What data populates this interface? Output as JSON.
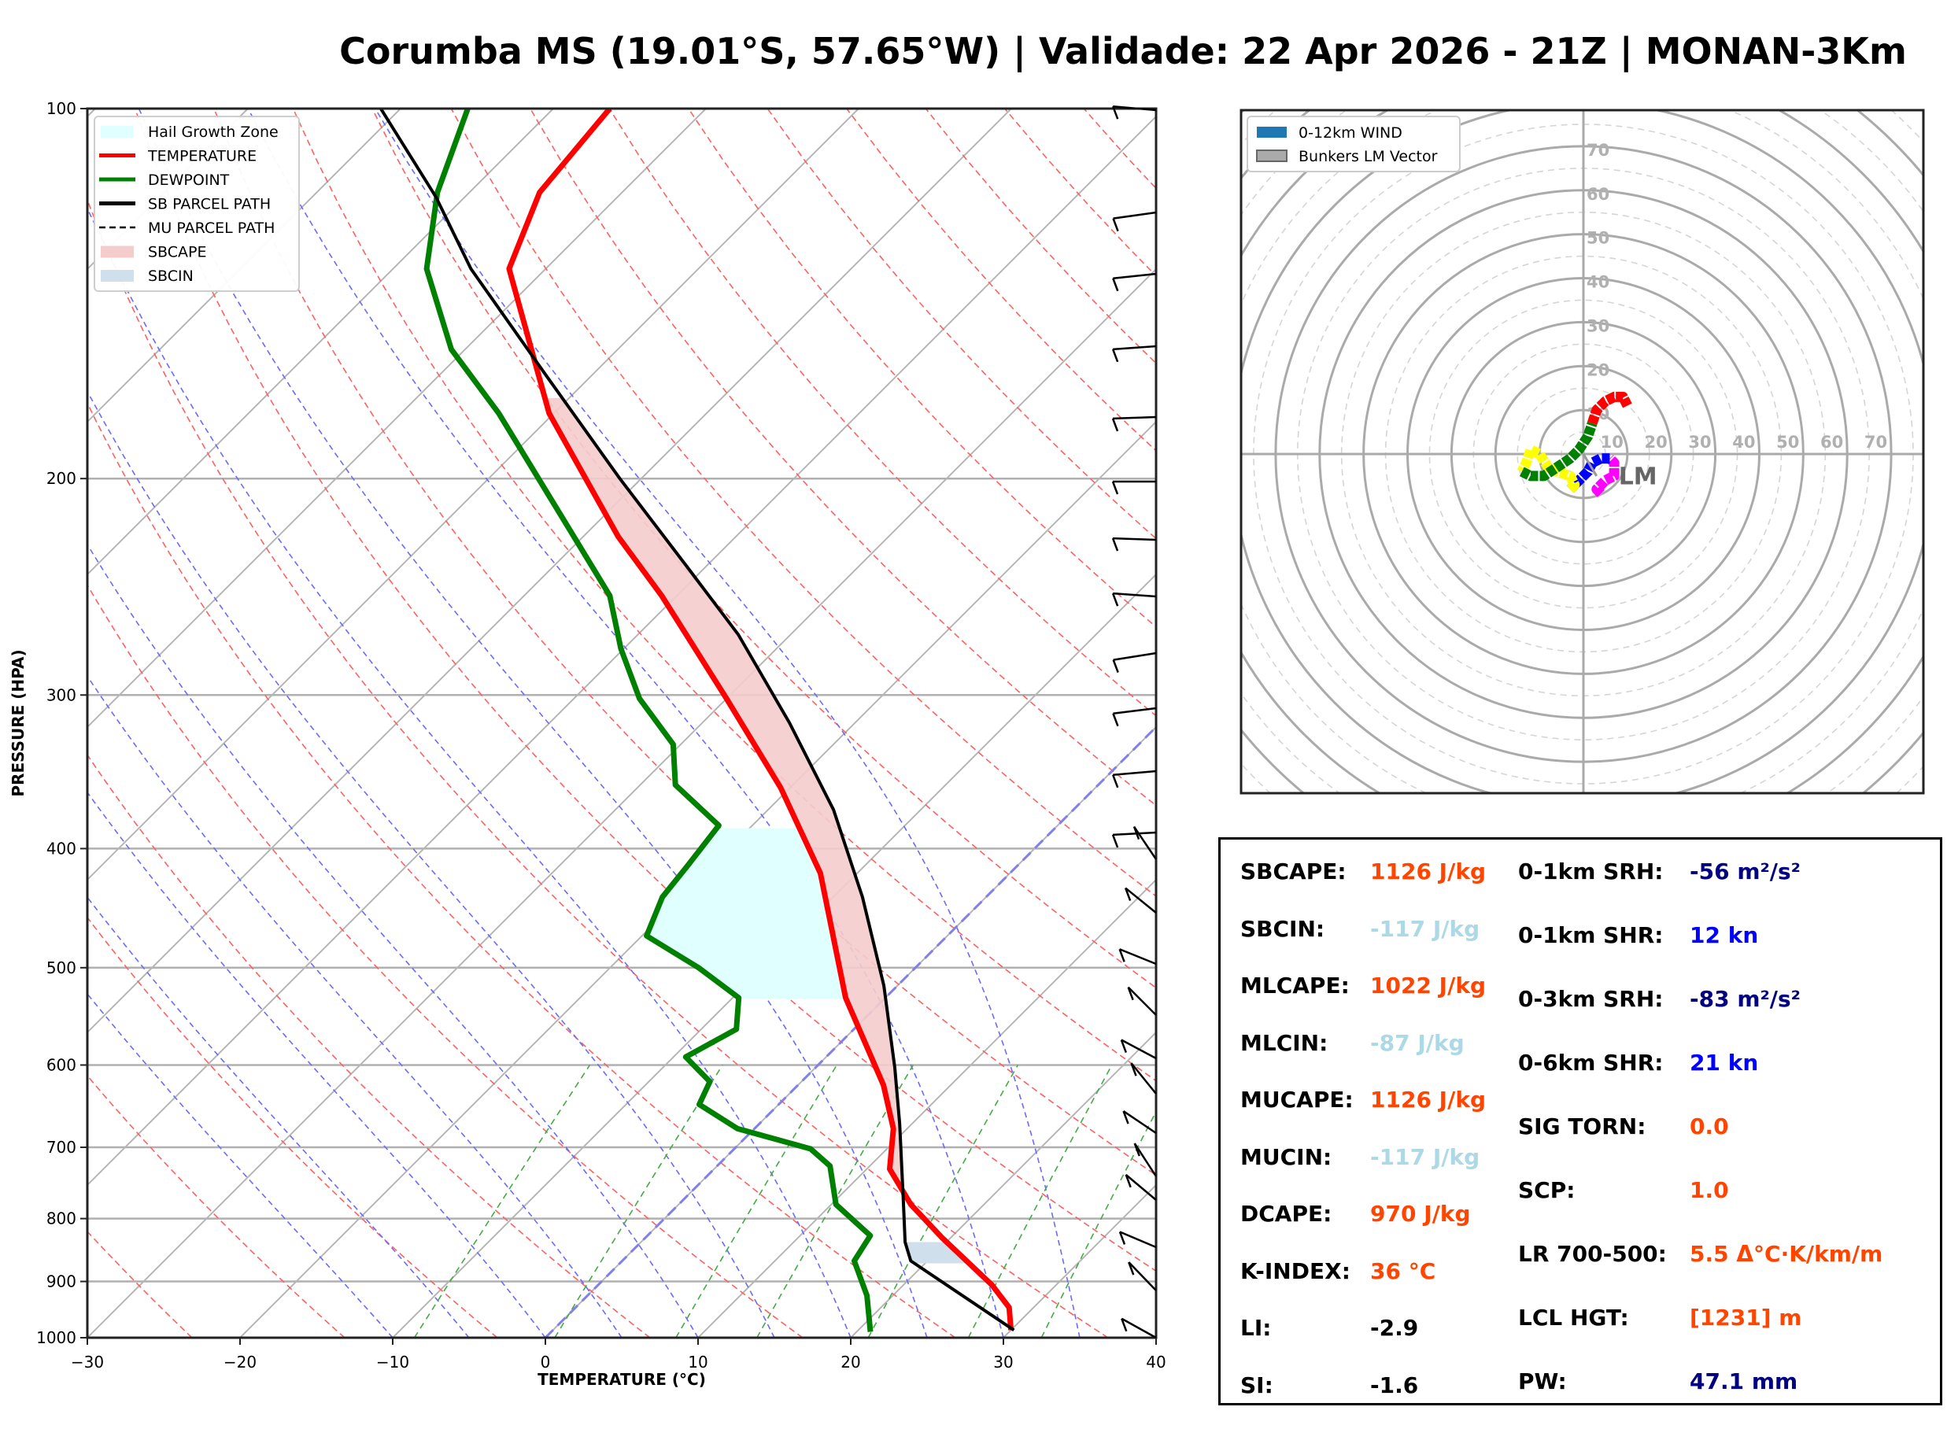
{
  "title": "Corumba MS (19.01°S, 57.65°W) | Validade: 22 Apr 2026 - 21Z | MONAN-3Km",
  "chart_data": [
    {
      "type": "line",
      "name": "skew-t log-p diagram",
      "xlabel": "TEMPERATURE (°C)",
      "ylabel": "PRESSURE (HPA)",
      "xlim": [
        -30,
        40
      ],
      "ylim": [
        1000,
        100
      ],
      "yscale": "log",
      "xticks": [
        "−30",
        "−20",
        "−10",
        "0",
        "10",
        "20",
        "30",
        "40"
      ],
      "xtick_values": [
        -30,
        -20,
        -10,
        0,
        10,
        20,
        30,
        40
      ],
      "yticks": [
        "100",
        "200",
        "300",
        "400",
        "500",
        "600",
        "700",
        "800",
        "900",
        "1000"
      ],
      "ytick_values": [
        100,
        200,
        300,
        400,
        500,
        600,
        700,
        800,
        900,
        1000
      ],
      "legend": {
        "placement": "top-left",
        "entries": [
          {
            "label": "Hail Growth Zone",
            "type": "patch",
            "color": "#e0ffff"
          },
          {
            "label": "TEMPERATURE",
            "type": "line",
            "color": "#ff0000"
          },
          {
            "label": "DEWPOINT",
            "type": "line",
            "color": "#008000"
          },
          {
            "label": "SB PARCEL PATH",
            "type": "line",
            "color": "#000000"
          },
          {
            "label": "MU PARCEL PATH",
            "type": "dashed",
            "color": "#000000"
          },
          {
            "label": "SBCAPE",
            "type": "patch",
            "color": "#f4cccc"
          },
          {
            "label": "SBCIN",
            "type": "patch",
            "color": "#cfe0ec"
          }
        ]
      },
      "series": [
        {
          "name": "TEMPERATURE",
          "color": "#ff0000",
          "points": [
            [
              986,
              30.0
            ],
            [
              945,
              28.4
            ],
            [
              906,
              25.8
            ],
            [
              830,
              19.5
            ],
            [
              779,
              15.2
            ],
            [
              729,
              11.5
            ],
            [
              676,
              9.1
            ],
            [
              623,
              5.6
            ],
            [
              529,
              -2.6
            ],
            [
              419,
              -12.4
            ],
            [
              357,
              -20.6
            ],
            [
              302,
              -30.0
            ],
            [
              249,
              -41.0
            ],
            [
              223,
              -47.7
            ],
            [
              177,
              -60.3
            ],
            [
              135,
              -72.4
            ],
            [
              117,
              -75.4
            ],
            [
              100,
              -76.3
            ]
          ]
        },
        {
          "name": "DEWPOINT",
          "color": "#008000",
          "points": [
            [
              989,
              20.9
            ],
            [
              924,
              18.3
            ],
            [
              866,
              15.2
            ],
            [
              826,
              14.6
            ],
            [
              779,
              10.3
            ],
            [
              725,
              7.4
            ],
            [
              702,
              5.0
            ],
            [
              676,
              -1.1
            ],
            [
              646,
              -5.2
            ],
            [
              619,
              -6.0
            ],
            [
              591,
              -9.2
            ],
            [
              561,
              -7.7
            ],
            [
              529,
              -9.6
            ],
            [
              500,
              -14.2
            ],
            [
              471,
              -19.7
            ],
            [
              438,
              -21.2
            ],
            [
              413,
              -21.6
            ],
            [
              383,
              -22.2
            ],
            [
              355,
              -27.7
            ],
            [
              329,
              -30.5
            ],
            [
              302,
              -35.7
            ],
            [
              275,
              -40.2
            ],
            [
              249,
              -44.4
            ],
            [
              223,
              -50.6
            ],
            [
              177,
              -63.6
            ],
            [
              157,
              -70.9
            ],
            [
              135,
              -77.8
            ],
            [
              117,
              -82.1
            ],
            [
              100,
              -85.6
            ]
          ]
        },
        {
          "name": "SB PARCEL PATH",
          "color": "#000000",
          "points": [
            [
              986,
              30.2
            ],
            [
              866,
              18.9
            ],
            [
              836,
              17.3
            ],
            [
              770,
              14.3
            ],
            [
              670,
              9.2
            ],
            [
              603,
              5.2
            ],
            [
              517,
              -0.9
            ],
            [
              438,
              -8.1
            ],
            [
              372,
              -15.7
            ],
            [
              316,
              -24.3
            ],
            [
              268,
              -33.4
            ],
            [
              236,
              -41.2
            ],
            [
              200,
              -51.4
            ],
            [
              164,
              -63.3
            ],
            [
              135,
              -74.9
            ],
            [
              118,
              -81.9
            ],
            [
              100,
              -91.3
            ]
          ]
        }
      ],
      "hail_growth_zone_hpa": [
        385,
        530
      ],
      "sbcin_layer_hpa": [
        836,
        870
      ],
      "wind_barbs": "plotted along right edge from 1000 to 100 hPa"
    },
    {
      "type": "line",
      "name": "hodograph",
      "legend": {
        "placement": "top-left",
        "entries": [
          {
            "label": "0-12km WIND",
            "color": "#1f77b4"
          },
          {
            "label": "Bunkers LM Vector",
            "color": "#aaaaaa"
          }
        ]
      },
      "rings": [
        10,
        20,
        30,
        40,
        50,
        60,
        70
      ],
      "ring_labels": [
        "10",
        "20",
        "30",
        "40",
        "50",
        "60",
        "70"
      ],
      "range": 80,
      "lm_label": "LM",
      "segments": [
        {
          "color": "#ff00ff",
          "points": [
            [
              4,
              -9
            ],
            [
              3,
              -8
            ],
            [
              5,
              -6
            ],
            [
              7,
              -5
            ],
            [
              7,
              -2
            ],
            [
              6,
              -1
            ]
          ]
        },
        {
          "color": "#0000ff",
          "points": [
            [
              6,
              -1
            ],
            [
              4,
              -1
            ],
            [
              2,
              -2
            ],
            [
              1,
              -4
            ],
            [
              -1,
              -6
            ],
            [
              -3,
              -8
            ]
          ]
        },
        {
          "color": "#ffff00",
          "points": [
            [
              -3,
              -8
            ],
            [
              -2,
              -7
            ],
            [
              -3,
              -5
            ],
            [
              -6,
              -4
            ],
            [
              -8,
              -3
            ],
            [
              -10,
              0
            ],
            [
              -12,
              1
            ],
            [
              -13,
              -2
            ],
            [
              -14,
              -4
            ]
          ]
        },
        {
          "color": "#008000",
          "points": [
            [
              -14,
              -4
            ],
            [
              -12,
              -5
            ],
            [
              -9,
              -5
            ],
            [
              -6,
              -3
            ],
            [
              -3,
              -1
            ],
            [
              -1,
              1
            ],
            [
              1,
              4
            ],
            [
              2,
              7
            ]
          ]
        },
        {
          "color": "#ff0000",
          "points": [
            [
              2,
              7
            ],
            [
              3,
              10
            ],
            [
              5,
              12
            ],
            [
              7,
              13
            ],
            [
              9,
              13
            ],
            [
              10,
              11
            ]
          ]
        }
      ],
      "bunkers_lm": [
        3,
        -5
      ]
    }
  ],
  "stats": {
    "left": [
      {
        "label": "SBCAPE:",
        "value": "1126 J/kg",
        "color": "#ff4500"
      },
      {
        "label": "SBCIN:",
        "value": "-117 J/kg",
        "color": "#add8e6"
      },
      {
        "label": "MLCAPE:",
        "value": "1022 J/kg",
        "color": "#ff4500"
      },
      {
        "label": "MLCIN:",
        "value": "-87 J/kg",
        "color": "#add8e6"
      },
      {
        "label": "MUCAPE:",
        "value": "1126 J/kg",
        "color": "#ff4500"
      },
      {
        "label": "MUCIN:",
        "value": "-117 J/kg",
        "color": "#add8e6"
      },
      {
        "label": "DCAPE:",
        "value": "970 J/kg",
        "color": "#ff4500"
      },
      {
        "label": "K-INDEX:",
        "value": "36 °C",
        "color": "#ff4500"
      },
      {
        "label": "LI:",
        "value": "-2.9",
        "color": "#000000"
      },
      {
        "label": "SI:",
        "value": "-1.6",
        "color": "#000000"
      }
    ],
    "right": [
      {
        "label": "0-1km SRH:",
        "value": "-56 m²/s²",
        "color": "#000080"
      },
      {
        "label": "0-1km SHR:",
        "value": "12 kn",
        "color": "#0000ff"
      },
      {
        "label": "0-3km SRH:",
        "value": "-83 m²/s²",
        "color": "#000080"
      },
      {
        "label": "0-6km SHR:",
        "value": "21 kn",
        "color": "#0000ff"
      },
      {
        "label": "SIG TORN:",
        "value": "0.0",
        "color": "#ff4500"
      },
      {
        "label": "SCP:",
        "value": "1.0",
        "color": "#ff4500"
      },
      {
        "label": "LR 700-500:",
        "value": "5.5 Δ°C·K/km/m",
        "color": "#ff4500"
      },
      {
        "label": "LCL HGT:",
        "value": "[1231] m",
        "color": "#ff4500"
      },
      {
        "label": "PW:",
        "value": "47.1 mm",
        "color": "#000080"
      }
    ]
  }
}
